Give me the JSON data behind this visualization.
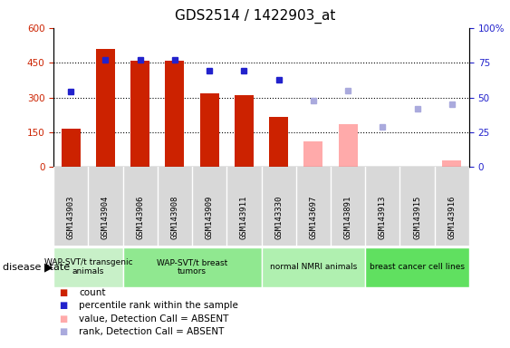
{
  "title": "GDS2514 / 1422903_at",
  "samples": [
    "GSM143903",
    "GSM143904",
    "GSM143906",
    "GSM143908",
    "GSM143909",
    "GSM143911",
    "GSM143330",
    "GSM143697",
    "GSM143891",
    "GSM143913",
    "GSM143915",
    "GSM143916"
  ],
  "count_values": [
    165,
    510,
    460,
    460,
    318,
    308,
    215,
    null,
    null,
    null,
    null,
    null
  ],
  "count_absent": [
    null,
    null,
    null,
    null,
    null,
    null,
    null,
    110,
    185,
    null,
    null,
    30
  ],
  "rank_values_pct": [
    54,
    77,
    77,
    77,
    69,
    69,
    63,
    null,
    null,
    null,
    null,
    null
  ],
  "rank_absent_pct": [
    null,
    null,
    null,
    null,
    null,
    null,
    null,
    48,
    55,
    29,
    42,
    45
  ],
  "disease_groups": [
    {
      "label": "WAP-SVT/t transgenic\nanimals",
      "start": 0,
      "end": 2,
      "color": "#c8f0c8"
    },
    {
      "label": "WAP-SVT/t breast\ntumors",
      "start": 2,
      "end": 6,
      "color": "#90e890"
    },
    {
      "label": "normal NMRI animals",
      "start": 6,
      "end": 9,
      "color": "#b0f0b0"
    },
    {
      "label": "breast cancer cell lines",
      "start": 9,
      "end": 12,
      "color": "#60e060"
    }
  ],
  "ylim_left": [
    0,
    600
  ],
  "ylim_right": [
    0,
    100
  ],
  "yticks_left": [
    0,
    150,
    300,
    450,
    600
  ],
  "yticks_right": [
    0,
    25,
    50,
    75,
    100
  ],
  "bar_width": 0.55,
  "count_color": "#cc2200",
  "count_absent_color": "#ffaaaa",
  "rank_color": "#2222cc",
  "rank_absent_color": "#aaaadd",
  "title_fontsize": 11,
  "tick_fontsize": 7.5,
  "label_fontsize": 8,
  "dotted_lines": [
    150,
    300,
    450
  ]
}
